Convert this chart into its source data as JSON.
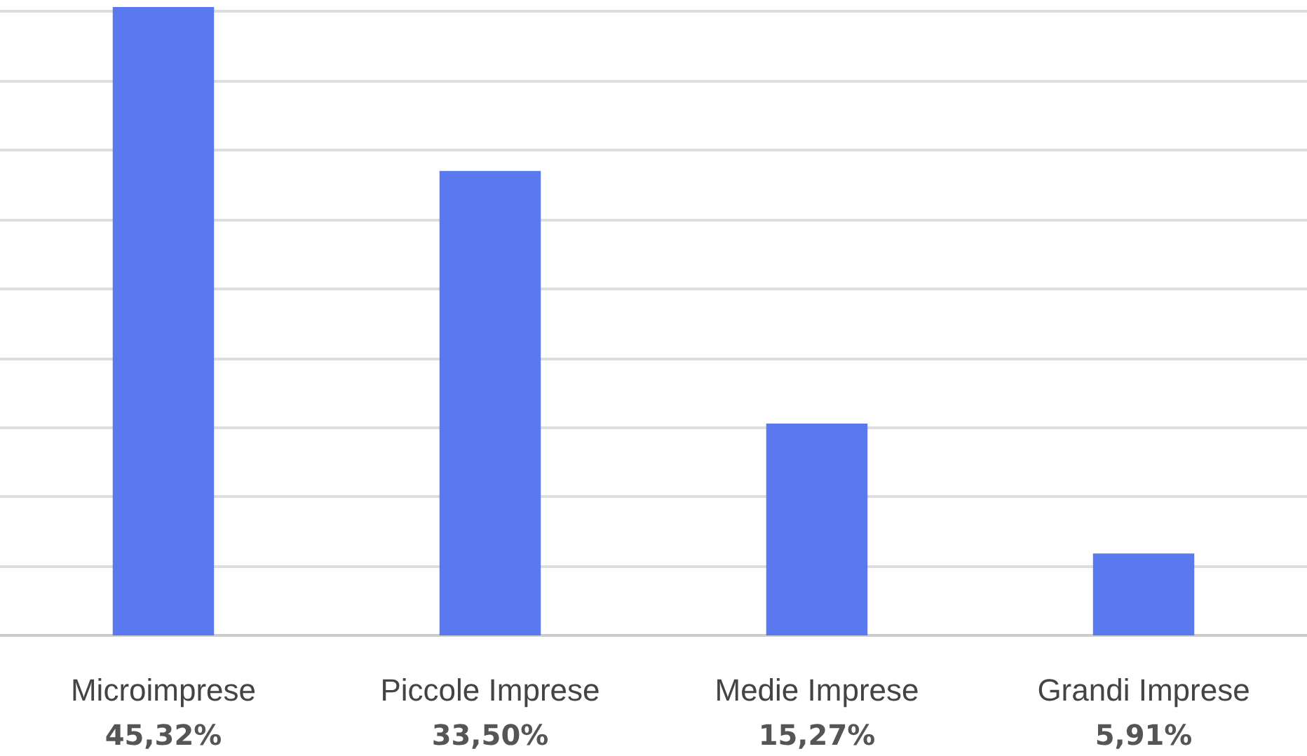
{
  "chart_data": {
    "type": "bar",
    "categories": [
      "Microimprese",
      "Piccole Imprese",
      "Medie Imprese",
      "Grandi Imprese"
    ],
    "values": [
      45.32,
      33.5,
      15.27,
      5.91
    ],
    "value_labels": [
      "45,32%",
      "33,50%",
      "15,27%",
      "5,91%"
    ],
    "color": "#5b79ee",
    "yticks": [
      {
        "value": 0,
        "label": null
      },
      {
        "value": 5,
        "label": null
      },
      {
        "value": 10,
        "label": null
      },
      {
        "value": 15,
        "label": null
      },
      {
        "value": 20,
        "label": null
      },
      {
        "value": 25,
        "label": null
      },
      {
        "value": 30,
        "label": null
      },
      {
        "value": 35,
        "label": null
      },
      {
        "value": 40,
        "label": null
      },
      {
        "value": 45,
        "label": null
      }
    ],
    "grid": "y",
    "tick_labels": "x"
  }
}
